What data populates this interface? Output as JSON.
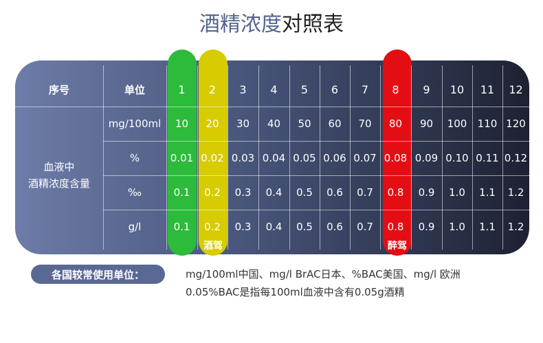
{
  "title": {
    "highlight": "酒精浓度",
    "rest": "对照表"
  },
  "table": {
    "header": [
      "序号",
      "单位",
      "1",
      "2",
      "3",
      "4",
      "5",
      "6",
      "7",
      "8",
      "9",
      "10",
      "11",
      "12"
    ],
    "row_label": [
      "血液中",
      "酒精浓度含量"
    ],
    "rows": [
      [
        "mg/100ml",
        "10",
        "20",
        "30",
        "40",
        "50",
        "60",
        "70",
        "80",
        "90",
        "100",
        "110",
        "120"
      ],
      [
        "%",
        "0.01",
        "0.02",
        "0.03",
        "0.04",
        "0.05",
        "0.06",
        "0.07",
        "0.08",
        "0.09",
        "0.10",
        "0.11",
        "0.12"
      ],
      [
        "‰",
        "0.1",
        "0.2",
        "0.3",
        "0.4",
        "0.5",
        "0.6",
        "0.7",
        "0.8",
        "0.9",
        "1.0",
        "1.1",
        "1.2"
      ],
      [
        "g/l",
        "0.1",
        "0.2",
        "0.3",
        "0.4",
        "0.5",
        "0.6",
        "0.7",
        "0.8",
        "0.9",
        "1.0",
        "1.1",
        "1.2"
      ]
    ]
  },
  "annotations": {
    "drunk_driving": "酒驾",
    "drunk": "醉驾"
  },
  "footer": {
    "badge": "各国较常使用单位：",
    "lines": [
      "mg/100ml中国、mg/l BrAC日本、%BAC美国、mg/l 欧洲",
      "0.05%BAC是指每100ml血液中含有0.05g酒精"
    ]
  }
}
